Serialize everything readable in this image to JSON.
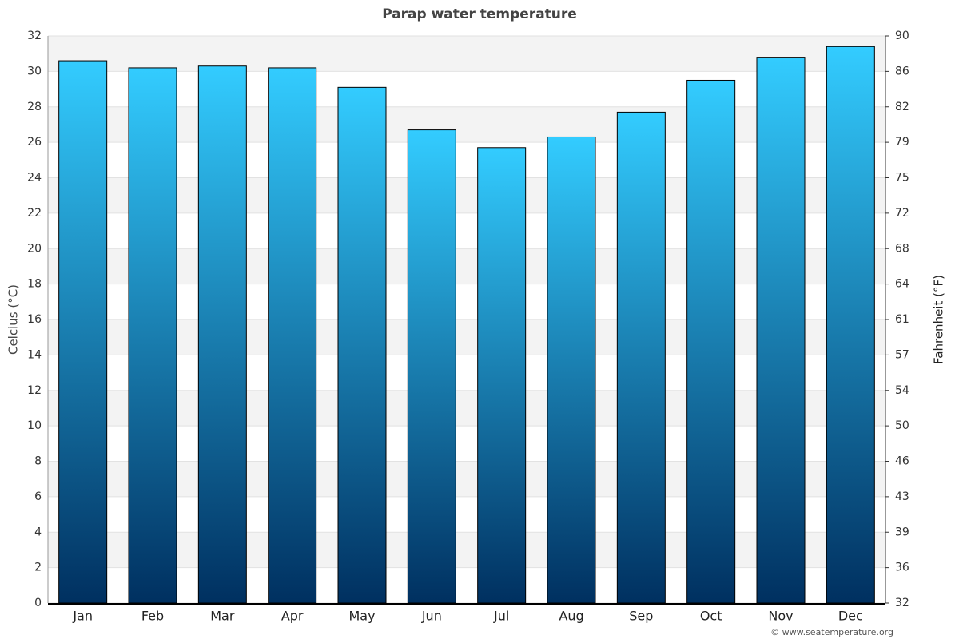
{
  "chart_data": {
    "type": "bar",
    "title": "Parap water temperature",
    "ylabel": "Celcius (°C)",
    "y2label": "Fahrenheit (°F)",
    "credit": "© www.seatemperature.org",
    "categories": [
      "Jan",
      "Feb",
      "Mar",
      "Apr",
      "May",
      "Jun",
      "Jul",
      "Aug",
      "Sep",
      "Oct",
      "Nov",
      "Dec"
    ],
    "values": [
      30.6,
      30.2,
      30.3,
      30.2,
      29.1,
      26.7,
      25.7,
      26.3,
      27.7,
      29.5,
      30.8,
      31.4
    ],
    "color_top": "#33ccff",
    "color_bottom": "#003060",
    "ylim": [
      0,
      32
    ],
    "yticks": [
      0,
      2,
      4,
      6,
      8,
      10,
      12,
      14,
      16,
      18,
      20,
      22,
      24,
      26,
      28,
      30,
      32
    ],
    "y2lim": [
      32,
      89.6
    ],
    "y2ticks": [
      32,
      {
        "value": 35.6,
        "label": "36"
      },
      {
        "value": 39.2,
        "label": "39"
      },
      {
        "value": 42.8,
        "label": "43"
      },
      {
        "value": 46.4,
        "label": "46"
      },
      50,
      {
        "value": 53.6,
        "label": "54"
      },
      {
        "value": 57.2,
        "label": "57"
      },
      {
        "value": 60.8,
        "label": "61"
      },
      {
        "value": 64.4,
        "label": "64"
      },
      68,
      {
        "value": 71.6,
        "label": "72"
      },
      {
        "value": 75.2,
        "label": "75"
      },
      {
        "value": 78.8,
        "label": "79"
      },
      {
        "value": 82.4,
        "label": "82"
      },
      86,
      {
        "value": 89.6,
        "label": "90"
      }
    ],
    "grid": true
  }
}
